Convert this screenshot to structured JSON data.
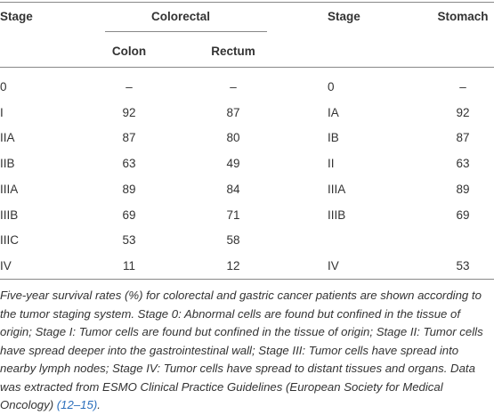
{
  "table": {
    "header": {
      "stage": "Stage",
      "colorectal": "Colorectal",
      "colon": "Colon",
      "rectum": "Rectum",
      "stage2": "Stage",
      "stomach": "Stomach"
    },
    "rows": [
      [
        "0",
        "–",
        "–",
        "0",
        "–"
      ],
      [
        "I",
        "92",
        "87",
        "IA",
        "92"
      ],
      [
        "IIA",
        "87",
        "80",
        "IB",
        "87"
      ],
      [
        "IIB",
        "63",
        "49",
        "II",
        "63"
      ],
      [
        "IIIA",
        "89",
        "84",
        "IIIA",
        "89"
      ],
      [
        "IIIB",
        "69",
        "71",
        "IIIB",
        "69"
      ],
      [
        "IIIC",
        "53",
        "58",
        null,
        null
      ],
      [
        "IV",
        "11",
        "12",
        "IV",
        "53"
      ]
    ]
  },
  "caption": {
    "text": "Five-year survival rates (%) for colorectal and gastric cancer patients are shown according to the tumor staging system. Stage 0: Abnormal cells are found but confined in the tissue of origin; Stage I: Tumor cells are found but confined in the tissue of origin; Stage II: Tumor cells have spread deeper into the gastrointestinal wall; Stage III: Tumor cells have spread into nearby lymph nodes; Stage IV: Tumor cells have spread to distant tissues and organs. Data was extracted from ESMO Clinical Practice Guidelines (European Society for Medical Oncology) ",
    "ref": "(12–15)",
    "end": "."
  }
}
